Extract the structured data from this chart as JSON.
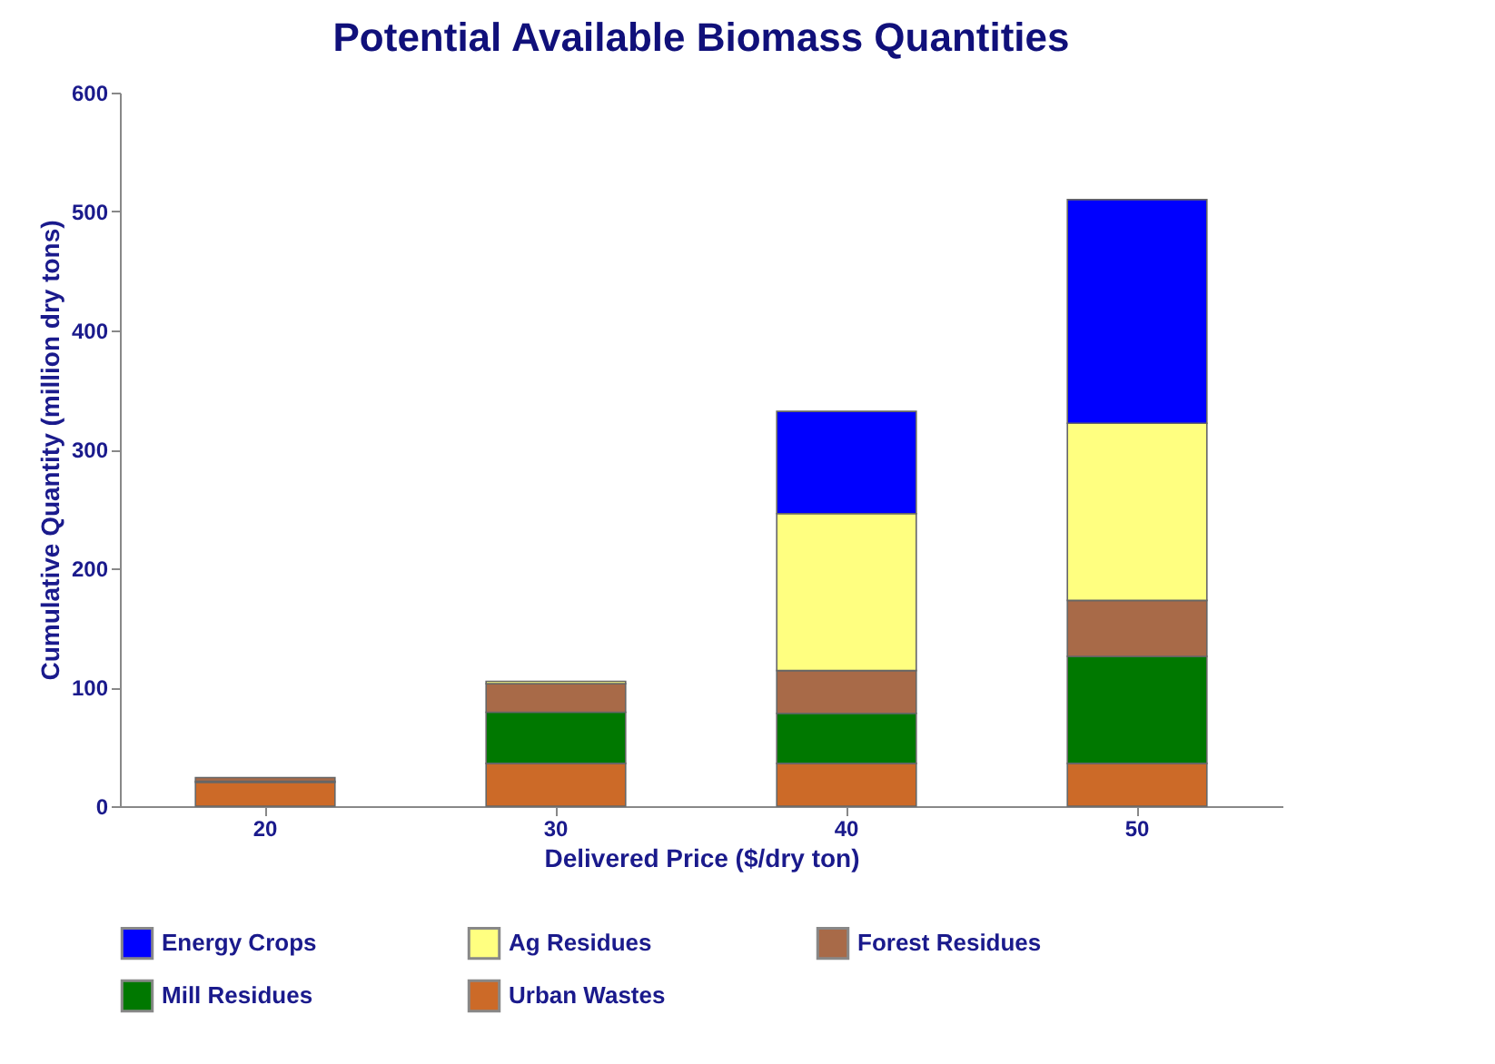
{
  "chart_data": {
    "type": "bar",
    "title": "Potential Available Biomass Quantities",
    "xlabel": "Delivered Price ($/dry ton)",
    "ylabel": "Cumulative Quantity (million dry tons)",
    "categories": [
      "20",
      "30",
      "40",
      "50"
    ],
    "stacked": true,
    "legend": "bottom",
    "grid": false,
    "ylim": [
      0,
      600
    ],
    "yticks": [
      0,
      100,
      200,
      300,
      400,
      500,
      600
    ],
    "series": [
      {
        "name": "Urban Wastes",
        "color": "#cc6a28",
        "values": [
          20,
          36,
          36,
          36
        ]
      },
      {
        "name": "Mill Residues",
        "color": "#007800",
        "values": [
          1,
          43,
          42,
          90
        ]
      },
      {
        "name": "Forest Residues",
        "color": "#a86a48",
        "values": [
          3,
          24,
          36,
          47
        ]
      },
      {
        "name": "Ag Residues",
        "color": "#ffff80",
        "values": [
          null,
          2,
          132,
          149
        ]
      },
      {
        "name": "Energy Crops",
        "color": "#0000ff",
        "values": [
          null,
          null,
          86,
          188
        ]
      }
    ]
  }
}
